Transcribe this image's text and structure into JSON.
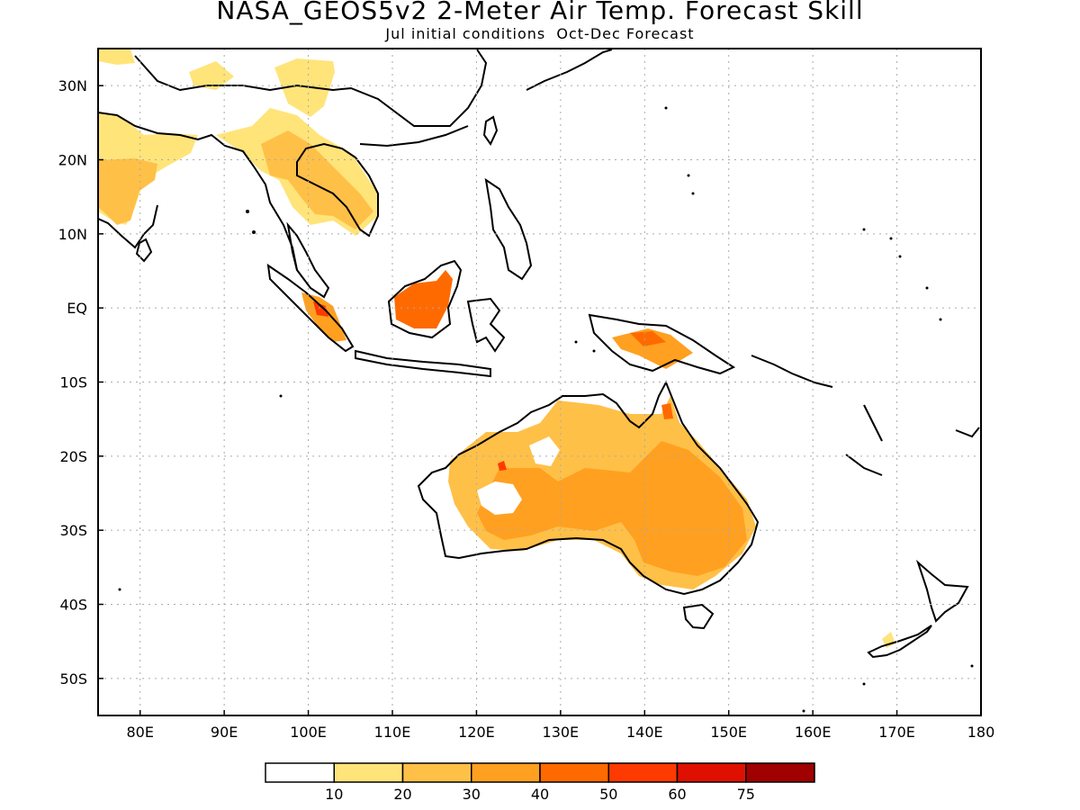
{
  "title": "NASA_GEOS5v2 2-Meter Air Temp. Forecast Skill",
  "subtitle": "Jul initial conditions  Oct-Dec Forecast",
  "map": {
    "projection": "equirectangular",
    "lon_range": [
      75,
      180
    ],
    "lat_range": [
      -55,
      35
    ],
    "grid": true,
    "x_ticks": [
      "80E",
      "90E",
      "100E",
      "110E",
      "120E",
      "130E",
      "140E",
      "150E",
      "160E",
      "170E",
      "180"
    ],
    "y_ticks": [
      "30N",
      "20N",
      "10N",
      "EQ",
      "10S",
      "20S",
      "30S",
      "40S",
      "50S"
    ]
  },
  "colorbar": {
    "levels": [
      "10",
      "20",
      "30",
      "40",
      "50",
      "60",
      "75"
    ],
    "colors": [
      "#ffffff",
      "#ffe47a",
      "#ffc048",
      "#ffa020",
      "#ff6a00",
      "#ff3a00",
      "#e01000",
      "#a00000"
    ]
  }
}
